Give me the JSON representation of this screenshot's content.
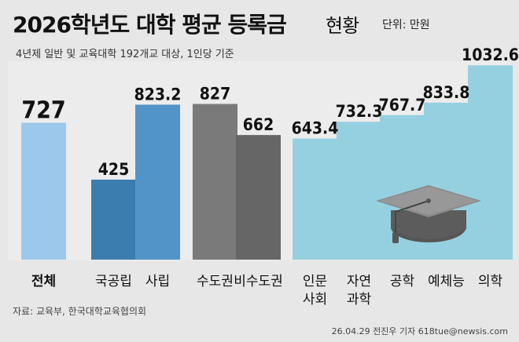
{
  "title": "2026학년도 대학 평균 등록금",
  "title_suffix": "현황",
  "unit": "단위: 만원",
  "subtitle": "4년제 일반 및 교육대학 192개교 대상, 1인당 기준",
  "source": "자료: 교육부, 한국대학교육협의회",
  "credit": "26.04.29 전진우 기자 618tue@newsis.com",
  "chart_data": {
    "type": "bar",
    "categories": [
      "전체",
      "국공립",
      "사립",
      "수도권",
      "비수도권",
      "인문 사회",
      "자연 과학",
      "공학",
      "예체능",
      "의학"
    ],
    "category_lines": [
      [
        "전체"
      ],
      [
        "국공립"
      ],
      [
        "사립"
      ],
      [
        "수도권"
      ],
      [
        "비수도권"
      ],
      [
        "인문",
        "사회"
      ],
      [
        "자연",
        "과학"
      ],
      [
        "공학"
      ],
      [
        "예체능"
      ],
      [
        "의학"
      ]
    ],
    "values": [
      727,
      425,
      823.2,
      827,
      662,
      643.4,
      732.3,
      767.7,
      833.8,
      1032.6
    ],
    "value_labels": [
      "727",
      "425",
      "823.2",
      "827",
      "662",
      "643.4",
      "732.3",
      "767.7",
      "833.8",
      "1032.6"
    ],
    "ylim": [
      0,
      1050
    ],
    "grid": false,
    "colors": {
      "overall": "#9cc8ec",
      "public": "#3c7db0",
      "private": "#5294c8",
      "capital": "#7a7a7a",
      "noncapital": "#666666",
      "fields": "#95d0e0"
    },
    "bar_colors": [
      "#9cc8ec",
      "#3c7db0",
      "#5294c8",
      "#7a7a7a",
      "#666666",
      "#95d0e0",
      "#95d0e0",
      "#95d0e0",
      "#95d0e0",
      "#95d0e0"
    ],
    "decoration": "graduation-cap-icon"
  }
}
